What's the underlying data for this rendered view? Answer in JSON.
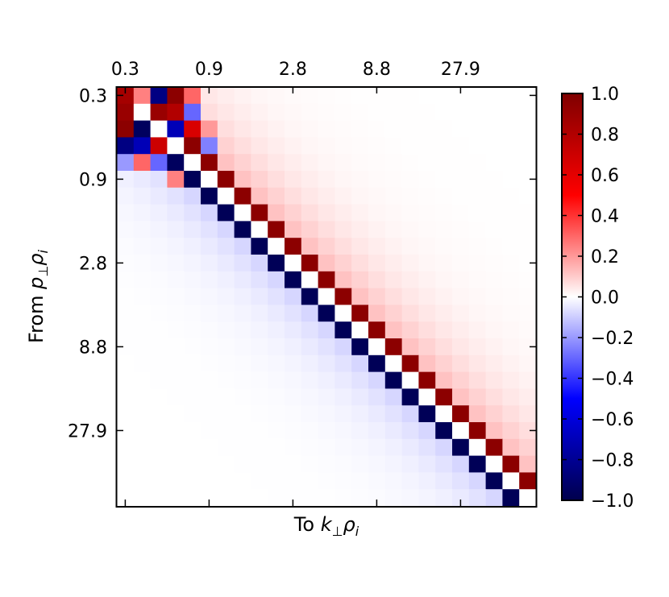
{
  "chart_data": {
    "type": "heatmap",
    "title": "",
    "xlabel_text": "To ",
    "xlabel_var": "k",
    "xlabel_sub": "⊥",
    "xlabel_var2": "ρ",
    "xlabel_sub2": "i",
    "ylabel_text": "From ",
    "ylabel_var": "p",
    "ylabel_sub": "⊥",
    "ylabel_var2": "ρ",
    "ylabel_sub2": "i",
    "x_ticks": [
      {
        "index": 0,
        "label": "0.3"
      },
      {
        "index": 5,
        "label": "0.9"
      },
      {
        "index": 10,
        "label": "2.8"
      },
      {
        "index": 15,
        "label": "8.8"
      },
      {
        "index": 20,
        "label": "27.9"
      }
    ],
    "y_ticks": [
      {
        "index": 0,
        "label": "0.3"
      },
      {
        "index": 5,
        "label": "0.9"
      },
      {
        "index": 10,
        "label": "2.8"
      },
      {
        "index": 15,
        "label": "8.8"
      },
      {
        "index": 20,
        "label": "27.9"
      }
    ],
    "grid_size": 25,
    "value_range": [
      -1.0,
      1.0
    ],
    "colormap": "seismic",
    "colorbar": {
      "ticks": [
        "1.0",
        "0.8",
        "0.6",
        "0.4",
        "0.2",
        "0.0",
        "−0.2",
        "−0.4",
        "−0.6",
        "−0.8",
        "−1.0"
      ],
      "tick_values": [
        1.0,
        0.8,
        0.6,
        0.4,
        0.2,
        0.0,
        -0.2,
        -0.4,
        -0.6,
        -0.8,
        -1.0
      ]
    },
    "pattern_description": "Transfer matrix: diagonal (i,i) ~ 0; (i,i+1) strongly positive; (i+1,i) strongly negative; faint positive tail above diagonal, faint negative tail below.",
    "special_cells": [
      {
        "row": 0,
        "col": 0,
        "value": 0.85
      },
      {
        "row": 0,
        "col": 1,
        "value": 0.25
      },
      {
        "row": 0,
        "col": 2,
        "value": -0.85
      },
      {
        "row": 0,
        "col": 3,
        "value": 0.95
      },
      {
        "row": 0,
        "col": 4,
        "value": 0.3
      },
      {
        "row": 1,
        "col": 0,
        "value": 0.9
      },
      {
        "row": 1,
        "col": 2,
        "value": 0.9
      },
      {
        "row": 1,
        "col": 3,
        "value": 0.8
      },
      {
        "row": 1,
        "col": 4,
        "value": -0.3
      },
      {
        "row": 2,
        "col": 0,
        "value": 0.95
      },
      {
        "row": 2,
        "col": 1,
        "value": -0.95
      },
      {
        "row": 2,
        "col": 3,
        "value": -0.7
      },
      {
        "row": 2,
        "col": 4,
        "value": 0.65
      },
      {
        "row": 2,
        "col": 5,
        "value": 0.2
      },
      {
        "row": 3,
        "col": 0,
        "value": -0.85
      },
      {
        "row": 3,
        "col": 1,
        "value": -0.7
      },
      {
        "row": 3,
        "col": 2,
        "value": 0.7
      },
      {
        "row": 3,
        "col": 4,
        "value": 0.95
      },
      {
        "row": 3,
        "col": 5,
        "value": -0.25
      },
      {
        "row": 4,
        "col": 0,
        "value": -0.2
      },
      {
        "row": 4,
        "col": 1,
        "value": 0.3
      },
      {
        "row": 4,
        "col": 2,
        "value": -0.3
      },
      {
        "row": 4,
        "col": 3,
        "value": -0.95
      },
      {
        "row": 5,
        "col": 3,
        "value": 0.25
      }
    ]
  }
}
